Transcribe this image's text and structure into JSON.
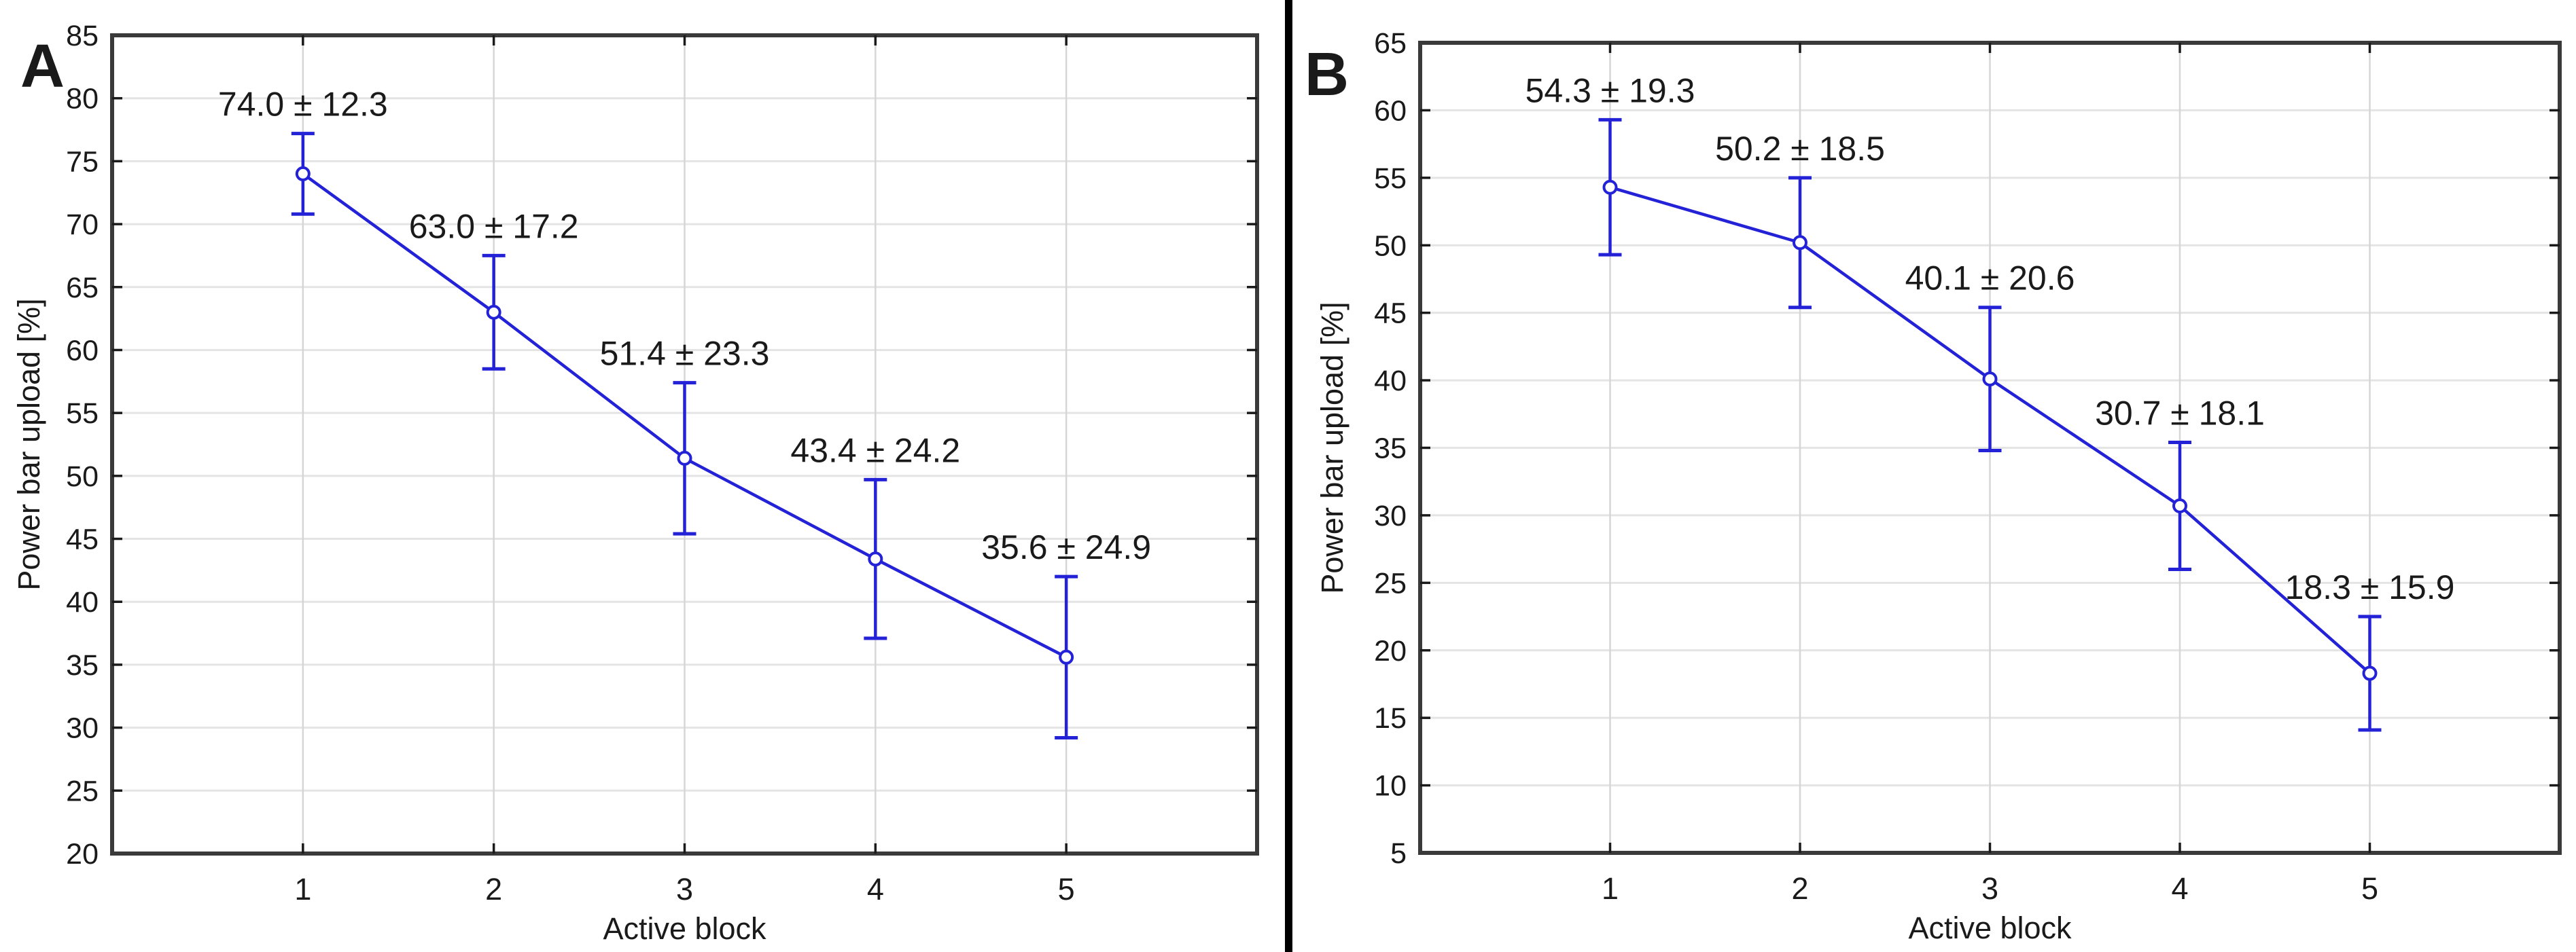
{
  "figure": {
    "background_color": "#ffffff",
    "divider_color": "#000000",
    "series_color": "#2422d7",
    "frame_color": "#3a3a3a",
    "grid_color_horizontal": "#e4e4e4",
    "grid_color_vertical": "#d6d6d6",
    "text_color": "#1a1a1a",
    "marker": "open-circle"
  },
  "chart_data": [
    {
      "type": "line",
      "panel_label": "A",
      "title": "",
      "xlabel": "Active block",
      "ylabel": "Power bar upload [%]",
      "x": [
        1,
        2,
        3,
        4,
        5
      ],
      "x_tick_labels": [
        "1",
        "2",
        "3",
        "4",
        "5"
      ],
      "y": [
        74.0,
        63.0,
        51.4,
        43.4,
        35.6
      ],
      "sd": [
        12.3,
        17.2,
        23.3,
        24.2,
        24.9
      ],
      "error_bar_half_height": [
        3.2,
        4.5,
        6.0,
        6.3,
        6.4
      ],
      "point_labels": [
        "74.0 ± 12.3",
        "63.0 ± 17.2",
        "51.4 ± 23.3",
        "43.4 ± 24.2",
        "35.6 ± 24.9"
      ],
      "ylim": [
        20,
        85
      ],
      "ytick_step": 5,
      "xlim": [
        0,
        6
      ],
      "grid": true,
      "legend": "none"
    },
    {
      "type": "line",
      "panel_label": "B",
      "title": "",
      "xlabel": "Active block",
      "ylabel": "Power bar upload [%]",
      "x": [
        1,
        2,
        3,
        4,
        5
      ],
      "x_tick_labels": [
        "1",
        "2",
        "3",
        "4",
        "5"
      ],
      "y": [
        54.3,
        50.2,
        40.1,
        30.7,
        18.3
      ],
      "sd": [
        19.3,
        18.5,
        20.6,
        18.1,
        15.9
      ],
      "error_bar_half_height": [
        5.0,
        4.8,
        5.3,
        4.7,
        4.2
      ],
      "point_labels": [
        "54.3 ± 19.3",
        "50.2 ± 18.5",
        "40.1 ± 20.6",
        "30.7 ± 18.1",
        "18.3 ± 15.9"
      ],
      "ylim": [
        5,
        65
      ],
      "ytick_step": 5,
      "xlim": [
        0,
        6
      ],
      "grid": true,
      "legend": "none"
    }
  ]
}
